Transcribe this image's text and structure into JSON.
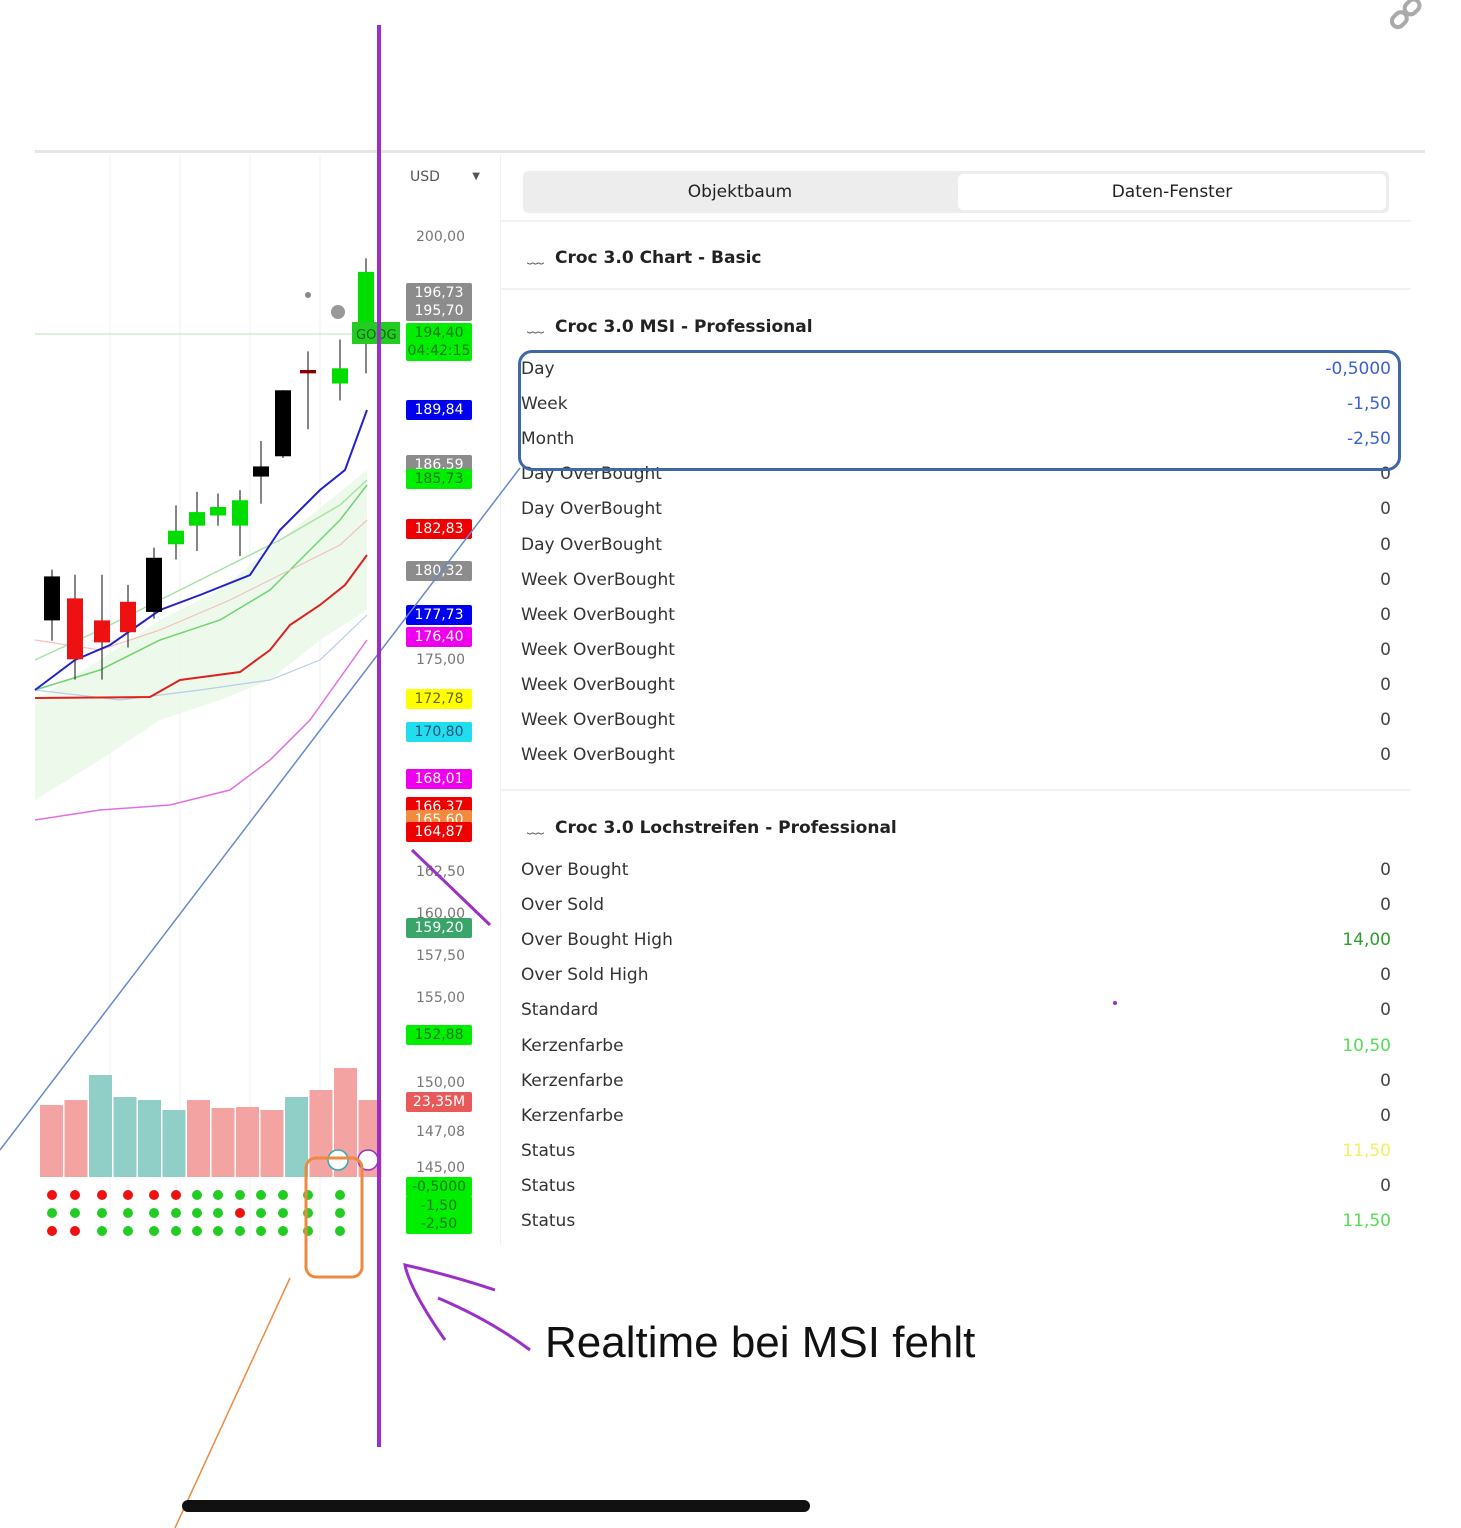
{
  "axis": {
    "currency": "USD",
    "ticks": [
      {
        "price": 200,
        "label": "200,00"
      },
      {
        "price": 175,
        "label": "175,00"
      },
      {
        "price": 162.5,
        "label": "162,50"
      },
      {
        "price": 160,
        "label": "160,00"
      },
      {
        "price": 157.5,
        "label": "157,50"
      },
      {
        "price": 155,
        "label": "155,00"
      },
      {
        "price": 150,
        "label": "150,00"
      },
      {
        "price": 147.08,
        "label": "147,08"
      },
      {
        "price": 145,
        "label": "145,00"
      }
    ],
    "price_labels": [
      {
        "price": 196.73,
        "label": "196,73",
        "bg": "#8c8c8c",
        "fg": "#ffffff"
      },
      {
        "price": 195.7,
        "label": "195,70",
        "bg": "#8c8c8c",
        "fg": "#ffffff"
      },
      {
        "price": 194.4,
        "label": "194,40",
        "bg": "#00ee00",
        "fg": "#117711"
      },
      {
        "price": 193.3,
        "label": "04:42:15",
        "bg": "#00ee00",
        "fg": "#117711"
      },
      {
        "price": 189.84,
        "label": "189,84",
        "bg": "#0000ee",
        "fg": "#ffffff"
      },
      {
        "price": 186.59,
        "label": "186,59",
        "bg": "#8c8c8c",
        "fg": "#ffffff"
      },
      {
        "price": 185.73,
        "label": "185,73",
        "bg": "#00ee00",
        "fg": "#117711"
      },
      {
        "price": 182.83,
        "label": "182,83",
        "bg": "#ee0000",
        "fg": "#ffffff"
      },
      {
        "price": 180.32,
        "label": "180,32",
        "bg": "#8c8c8c",
        "fg": "#ffffff"
      },
      {
        "price": 177.73,
        "label": "177,73",
        "bg": "#0000ee",
        "fg": "#ffffff"
      },
      {
        "price": 176.4,
        "label": "176,40",
        "bg": "#ee00ee",
        "fg": "#ffffff"
      },
      {
        "price": 172.78,
        "label": "172,78",
        "bg": "#ffff00",
        "fg": "#666600"
      },
      {
        "price": 170.8,
        "label": "170,80",
        "bg": "#22ddee",
        "fg": "#225577"
      },
      {
        "price": 168.01,
        "label": "168,01",
        "bg": "#ee00ee",
        "fg": "#ffffff"
      },
      {
        "price": 166.37,
        "label": "166,37",
        "bg": "#ee0000",
        "fg": "#ffffff"
      },
      {
        "price": 165.6,
        "label": "165,60",
        "bg": "#f28a40",
        "fg": "#ffffff"
      },
      {
        "price": 164.87,
        "label": "164,87",
        "bg": "#ee0000",
        "fg": "#ffffff"
      },
      {
        "price": 159.2,
        "label": "159,20",
        "bg": "#3aa56a",
        "fg": "#ffffff"
      },
      {
        "price": 152.88,
        "label": "152,88",
        "bg": "#00ee00",
        "fg": "#117711"
      },
      {
        "price": 148.95,
        "label": "23,35M",
        "bg": "#e85a5a",
        "fg": "#ffffff"
      },
      {
        "price": 143.9,
        "label": "-0,5000",
        "bg": "#00ee00",
        "fg": "#117711"
      },
      {
        "price": 142.8,
        "label": "-1,50",
        "bg": "#00ee00",
        "fg": "#117711"
      },
      {
        "price": 141.75,
        "label": "-2,50",
        "bg": "#00ee00",
        "fg": "#117711"
      }
    ]
  },
  "chart": {
    "symbol_tag": "GOOG",
    "candles": [
      {
        "o": 180.0,
        "c": 177.4,
        "h": 180.4,
        "l": 176.2,
        "color": "#000000"
      },
      {
        "o": 178.7,
        "c": 175.1,
        "h": 180.1,
        "l": 173.9,
        "color": "#ee1111"
      },
      {
        "o": 177.4,
        "c": 176.1,
        "h": 180.1,
        "l": 173.9,
        "color": "#ee1111"
      },
      {
        "o": 178.5,
        "c": 176.7,
        "h": 179.5,
        "l": 175.8,
        "color": "#ee1111"
      },
      {
        "o": 181.1,
        "c": 177.9,
        "h": 181.7,
        "l": 177.5,
        "color": "#000000"
      },
      {
        "o": 182.7,
        "c": 181.9,
        "h": 184.2,
        "l": 181.0,
        "color": "#00dd00"
      },
      {
        "o": 183.8,
        "c": 183.0,
        "h": 185.0,
        "l": 181.5,
        "color": "#00dd00"
      },
      {
        "o": 184.1,
        "c": 183.6,
        "h": 184.9,
        "l": 183.0,
        "color": "#00dd00"
      },
      {
        "o": 184.5,
        "c": 183.0,
        "h": 185.1,
        "l": 181.2,
        "color": "#00dd00"
      },
      {
        "o": 186.5,
        "c": 185.9,
        "h": 188.0,
        "l": 184.3,
        "color": "#000000"
      },
      {
        "o": 191.0,
        "c": 187.1,
        "h": 191.0,
        "l": 187.0,
        "color": "#000000"
      },
      {
        "o": 192.2,
        "c": 192.0,
        "h": 193.3,
        "l": 188.7,
        "color": "#880000"
      },
      {
        "o": 192.3,
        "c": 191.4,
        "h": 194.0,
        "l": 190.4,
        "color": "#00dd00"
      },
      {
        "o": 198.0,
        "c": 194.0,
        "h": 198.8,
        "l": 192.0,
        "color": "#00dd00"
      }
    ],
    "volume_colors": [
      "#f4a3a3",
      "#f4a3a3",
      "#8fcfc8",
      "#8fcfc8",
      "#8fcfc8",
      "#8fcfc8",
      "#f4a3a3",
      "#f4a3a3",
      "#f4a3a3",
      "#f4a3a3",
      "#8fcfc8",
      "#f4a3a3",
      "#f4a3a3",
      "#f4a3a3"
    ],
    "dots": [
      [
        "r",
        "r",
        "r",
        "r",
        "r",
        "r",
        "g",
        "g",
        "g",
        "g",
        "g",
        "g",
        "g",
        "g"
      ],
      [
        "g",
        "g",
        "g",
        "g",
        "g",
        "g",
        "g",
        "g",
        "r",
        "g",
        "g",
        "g",
        "g",
        "g"
      ],
      [
        "r",
        "r",
        "g",
        "g",
        "g",
        "g",
        "g",
        "g",
        "g",
        "g",
        "g",
        "g",
        "g",
        "g"
      ]
    ]
  },
  "panel": {
    "tabs": [
      {
        "label": "Objektbaum",
        "active": false
      },
      {
        "label": "Daten-Fenster",
        "active": true
      }
    ],
    "sections": [
      {
        "title": "Croc 3.0 Chart - Basic",
        "rows": []
      },
      {
        "title": "Croc 3.0 MSI - Professional",
        "rows": [
          {
            "label": "Day",
            "value": "-0,5000",
            "color": "#3b5fd6"
          },
          {
            "label": "Week",
            "value": "-1,50",
            "color": "#3b5fd6"
          },
          {
            "label": "Month",
            "value": "-2,50",
            "color": "#3b5fd6"
          },
          {
            "label": "Day OverBought",
            "value": "0",
            "color": "#444"
          },
          {
            "label": "Day OverBought",
            "value": "0",
            "color": "#444"
          },
          {
            "label": "Day OverBought",
            "value": "0",
            "color": "#444"
          },
          {
            "label": "Week OverBought",
            "value": "0",
            "color": "#444"
          },
          {
            "label": "Week OverBought",
            "value": "0",
            "color": "#444"
          },
          {
            "label": "Week OverBought",
            "value": "0",
            "color": "#444"
          },
          {
            "label": "Week OverBought",
            "value": "0",
            "color": "#444"
          },
          {
            "label": "Week OverBought",
            "value": "0",
            "color": "#444"
          },
          {
            "label": "Week OverBought",
            "value": "0",
            "color": "#444"
          }
        ]
      },
      {
        "title": "Croc 3.0 Lochstreifen - Professional",
        "rows": [
          {
            "label": "Over Bought",
            "value": "0",
            "color": "#444"
          },
          {
            "label": "Over Sold",
            "value": "0",
            "color": "#444"
          },
          {
            "label": "Over Bought High",
            "value": "14,00",
            "color": "#2e9e2e"
          },
          {
            "label": "Over Sold High",
            "value": "0",
            "color": "#444"
          },
          {
            "label": "Standard",
            "value": "0",
            "color": "#444"
          },
          {
            "label": "Kerzenfarbe",
            "value": "10,50",
            "color": "#55dd55"
          },
          {
            "label": "Kerzenfarbe",
            "value": "0",
            "color": "#444"
          },
          {
            "label": "Kerzenfarbe",
            "value": "0",
            "color": "#444"
          },
          {
            "label": "Status",
            "value": "11,50",
            "color": "#f0f060"
          },
          {
            "label": "Status",
            "value": "0",
            "color": "#444"
          },
          {
            "label": "Status",
            "value": "11,50",
            "color": "#55dd55"
          }
        ]
      }
    ]
  },
  "annotation": {
    "text": "Realtime bei MSI fehlt",
    "color": "#9b30c8"
  },
  "colors": {
    "annotation_purple": "#9b30c8",
    "highlight_blue": "#3e68a8",
    "orange": "#ee8a40"
  }
}
